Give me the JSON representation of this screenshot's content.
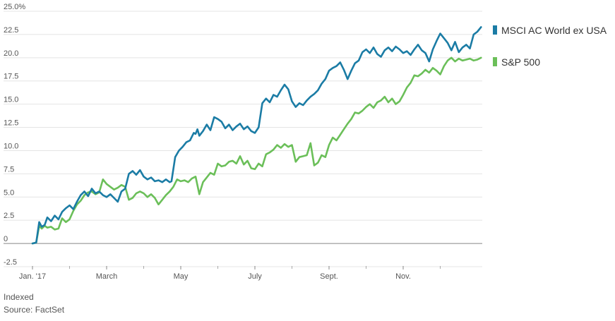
{
  "chart_data": {
    "type": "line",
    "title": "",
    "xlabel": "",
    "ylabel": "",
    "y_unit_suffix": "%",
    "ylim": [
      -2.5,
      25.0
    ],
    "y_ticks": [
      "25.0%",
      "22.5",
      "20.0",
      "17.5",
      "15.0",
      "12.5",
      "10.0",
      "7.5",
      "5.0",
      "2.5",
      "0",
      "-2.5"
    ],
    "y_tick_values": [
      25.0,
      22.5,
      20.0,
      17.5,
      15.0,
      12.5,
      10.0,
      7.5,
      5.0,
      2.5,
      0,
      -2.5
    ],
    "x_ticks": [
      {
        "label": "Jan. '17",
        "month": 0
      },
      {
        "label": "March",
        "month": 2
      },
      {
        "label": "May",
        "month": 4
      },
      {
        "label": "July",
        "month": 6
      },
      {
        "label": "Sept.",
        "month": 8
      },
      {
        "label": "Nov.",
        "month": 10
      }
    ],
    "x_minor_months": [
      1,
      3,
      5,
      7,
      9,
      11
    ],
    "grid": true,
    "legend_position": "right",
    "series": [
      {
        "name": "MSCI AC World ex USA",
        "color": "#1b7ca5",
        "points": [
          [
            0.0,
            0.0
          ],
          [
            0.1,
            0.1
          ],
          [
            0.18,
            2.3
          ],
          [
            0.25,
            1.8
          ],
          [
            0.33,
            2.0
          ],
          [
            0.4,
            2.8
          ],
          [
            0.5,
            2.4
          ],
          [
            0.6,
            3.0
          ],
          [
            0.7,
            2.6
          ],
          [
            0.8,
            3.4
          ],
          [
            0.9,
            3.8
          ],
          [
            1.0,
            4.1
          ],
          [
            1.1,
            3.7
          ],
          [
            1.2,
            4.5
          ],
          [
            1.3,
            5.2
          ],
          [
            1.4,
            5.6
          ],
          [
            1.5,
            5.1
          ],
          [
            1.6,
            5.9
          ],
          [
            1.7,
            5.4
          ],
          [
            1.8,
            5.6
          ],
          [
            1.9,
            5.2
          ],
          [
            2.0,
            5.0
          ],
          [
            2.1,
            5.3
          ],
          [
            2.2,
            4.9
          ],
          [
            2.3,
            4.5
          ],
          [
            2.4,
            5.6
          ],
          [
            2.5,
            5.9
          ],
          [
            2.6,
            7.5
          ],
          [
            2.7,
            7.8
          ],
          [
            2.8,
            7.4
          ],
          [
            2.9,
            7.9
          ],
          [
            3.0,
            7.2
          ],
          [
            3.1,
            6.9
          ],
          [
            3.2,
            7.1
          ],
          [
            3.3,
            6.7
          ],
          [
            3.4,
            6.8
          ],
          [
            3.5,
            6.6
          ],
          [
            3.6,
            6.9
          ],
          [
            3.7,
            6.6
          ],
          [
            3.75,
            6.7
          ],
          [
            3.85,
            9.3
          ],
          [
            3.95,
            10.0
          ],
          [
            4.05,
            10.4
          ],
          [
            4.15,
            10.9
          ],
          [
            4.25,
            11.1
          ],
          [
            4.35,
            11.9
          ],
          [
            4.4,
            11.8
          ],
          [
            4.45,
            12.3
          ],
          [
            4.5,
            11.6
          ],
          [
            4.6,
            12.1
          ],
          [
            4.7,
            12.8
          ],
          [
            4.8,
            12.2
          ],
          [
            4.9,
            13.6
          ],
          [
            5.0,
            13.4
          ],
          [
            5.1,
            13.1
          ],
          [
            5.2,
            12.4
          ],
          [
            5.3,
            12.8
          ],
          [
            5.4,
            12.2
          ],
          [
            5.5,
            12.6
          ],
          [
            5.6,
            12.9
          ],
          [
            5.7,
            12.3
          ],
          [
            5.8,
            12.6
          ],
          [
            5.9,
            12.1
          ],
          [
            6.0,
            11.9
          ],
          [
            6.1,
            12.5
          ],
          [
            6.2,
            15.1
          ],
          [
            6.3,
            15.6
          ],
          [
            6.4,
            15.2
          ],
          [
            6.5,
            16.0
          ],
          [
            6.6,
            15.8
          ],
          [
            6.7,
            16.5
          ],
          [
            6.8,
            17.1
          ],
          [
            6.9,
            16.6
          ],
          [
            7.0,
            15.3
          ],
          [
            7.1,
            14.7
          ],
          [
            7.2,
            15.1
          ],
          [
            7.3,
            14.9
          ],
          [
            7.4,
            15.4
          ],
          [
            7.5,
            15.8
          ],
          [
            7.6,
            16.1
          ],
          [
            7.7,
            16.5
          ],
          [
            7.8,
            17.2
          ],
          [
            7.9,
            17.7
          ],
          [
            8.0,
            18.6
          ],
          [
            8.1,
            18.9
          ],
          [
            8.2,
            19.1
          ],
          [
            8.3,
            19.5
          ],
          [
            8.4,
            18.7
          ],
          [
            8.5,
            17.7
          ],
          [
            8.6,
            18.6
          ],
          [
            8.7,
            19.4
          ],
          [
            8.8,
            19.7
          ],
          [
            8.9,
            20.6
          ],
          [
            9.0,
            20.9
          ],
          [
            9.1,
            20.5
          ],
          [
            9.2,
            21.1
          ],
          [
            9.3,
            20.4
          ],
          [
            9.4,
            20.1
          ],
          [
            9.5,
            20.8
          ],
          [
            9.6,
            21.1
          ],
          [
            9.7,
            20.7
          ],
          [
            9.8,
            21.2
          ],
          [
            9.9,
            20.9
          ],
          [
            10.0,
            20.5
          ],
          [
            10.1,
            20.7
          ],
          [
            10.2,
            20.3
          ],
          [
            10.3,
            20.9
          ],
          [
            10.4,
            21.4
          ],
          [
            10.5,
            20.8
          ],
          [
            10.6,
            20.5
          ],
          [
            10.7,
            19.6
          ],
          [
            10.8,
            20.9
          ],
          [
            10.9,
            21.8
          ],
          [
            11.0,
            22.6
          ],
          [
            11.1,
            22.1
          ],
          [
            11.2,
            21.6
          ],
          [
            11.3,
            20.8
          ],
          [
            11.4,
            21.7
          ],
          [
            11.5,
            20.6
          ],
          [
            11.6,
            21.1
          ],
          [
            11.7,
            21.4
          ],
          [
            11.8,
            21.0
          ],
          [
            11.9,
            22.5
          ],
          [
            12.0,
            22.8
          ],
          [
            12.1,
            23.3
          ]
        ]
      },
      {
        "name": "S&P 500",
        "color": "#6bbf59",
        "points": [
          [
            0.0,
            0.0
          ],
          [
            0.1,
            0.1
          ],
          [
            0.18,
            1.9
          ],
          [
            0.25,
            1.6
          ],
          [
            0.33,
            1.9
          ],
          [
            0.4,
            1.7
          ],
          [
            0.5,
            1.8
          ],
          [
            0.6,
            1.5
          ],
          [
            0.7,
            1.6
          ],
          [
            0.8,
            2.7
          ],
          [
            0.9,
            2.3
          ],
          [
            1.0,
            2.6
          ],
          [
            1.1,
            3.5
          ],
          [
            1.2,
            4.2
          ],
          [
            1.3,
            4.6
          ],
          [
            1.4,
            5.2
          ],
          [
            1.5,
            5.5
          ],
          [
            1.6,
            5.6
          ],
          [
            1.7,
            5.3
          ],
          [
            1.8,
            5.5
          ],
          [
            1.9,
            6.9
          ],
          [
            2.0,
            6.4
          ],
          [
            2.1,
            6.1
          ],
          [
            2.2,
            5.8
          ],
          [
            2.3,
            6.0
          ],
          [
            2.4,
            6.3
          ],
          [
            2.5,
            6.1
          ],
          [
            2.6,
            4.7
          ],
          [
            2.7,
            4.9
          ],
          [
            2.8,
            5.4
          ],
          [
            2.9,
            5.6
          ],
          [
            3.0,
            5.4
          ],
          [
            3.1,
            5.0
          ],
          [
            3.2,
            5.3
          ],
          [
            3.3,
            4.9
          ],
          [
            3.4,
            4.2
          ],
          [
            3.5,
            4.7
          ],
          [
            3.6,
            5.2
          ],
          [
            3.7,
            5.6
          ],
          [
            3.8,
            6.1
          ],
          [
            3.9,
            6.9
          ],
          [
            4.0,
            6.7
          ],
          [
            4.1,
            6.8
          ],
          [
            4.2,
            6.6
          ],
          [
            4.3,
            7.0
          ],
          [
            4.4,
            7.2
          ],
          [
            4.5,
            5.3
          ],
          [
            4.6,
            6.6
          ],
          [
            4.7,
            7.1
          ],
          [
            4.8,
            7.6
          ],
          [
            4.9,
            7.4
          ],
          [
            5.0,
            8.6
          ],
          [
            5.1,
            8.3
          ],
          [
            5.2,
            8.4
          ],
          [
            5.3,
            8.8
          ],
          [
            5.4,
            8.9
          ],
          [
            5.5,
            8.6
          ],
          [
            5.6,
            9.4
          ],
          [
            5.7,
            8.5
          ],
          [
            5.8,
            8.9
          ],
          [
            5.9,
            8.1
          ],
          [
            6.0,
            8.0
          ],
          [
            6.1,
            8.6
          ],
          [
            6.2,
            8.3
          ],
          [
            6.3,
            9.6
          ],
          [
            6.4,
            9.8
          ],
          [
            6.5,
            10.1
          ],
          [
            6.6,
            10.6
          ],
          [
            6.7,
            10.3
          ],
          [
            6.8,
            10.7
          ],
          [
            6.9,
            10.4
          ],
          [
            7.0,
            10.6
          ],
          [
            7.1,
            8.8
          ],
          [
            7.2,
            9.3
          ],
          [
            7.3,
            9.4
          ],
          [
            7.4,
            9.5
          ],
          [
            7.5,
            10.8
          ],
          [
            7.6,
            8.4
          ],
          [
            7.7,
            8.7
          ],
          [
            7.8,
            9.5
          ],
          [
            7.9,
            9.3
          ],
          [
            8.0,
            10.6
          ],
          [
            8.1,
            11.4
          ],
          [
            8.2,
            11.1
          ],
          [
            8.3,
            11.7
          ],
          [
            8.4,
            12.3
          ],
          [
            8.5,
            12.9
          ],
          [
            8.6,
            13.4
          ],
          [
            8.7,
            14.1
          ],
          [
            8.8,
            14.0
          ],
          [
            8.9,
            14.3
          ],
          [
            9.0,
            14.7
          ],
          [
            9.1,
            15.0
          ],
          [
            9.2,
            14.6
          ],
          [
            9.3,
            15.2
          ],
          [
            9.4,
            15.4
          ],
          [
            9.5,
            15.8
          ],
          [
            9.6,
            15.2
          ],
          [
            9.7,
            15.6
          ],
          [
            9.8,
            15.0
          ],
          [
            9.9,
            15.3
          ],
          [
            10.0,
            16.0
          ],
          [
            10.1,
            16.8
          ],
          [
            10.2,
            17.3
          ],
          [
            10.3,
            18.1
          ],
          [
            10.4,
            18.0
          ],
          [
            10.5,
            18.3
          ],
          [
            10.6,
            18.7
          ],
          [
            10.7,
            18.4
          ],
          [
            10.8,
            18.9
          ],
          [
            10.9,
            18.6
          ],
          [
            11.0,
            18.2
          ],
          [
            11.1,
            19.1
          ],
          [
            11.2,
            19.7
          ],
          [
            11.3,
            20.0
          ],
          [
            11.4,
            19.6
          ],
          [
            11.5,
            19.9
          ],
          [
            11.6,
            19.7
          ],
          [
            11.7,
            19.8
          ],
          [
            11.8,
            19.9
          ],
          [
            11.9,
            19.7
          ],
          [
            12.0,
            19.8
          ],
          [
            12.1,
            20.0
          ]
        ]
      }
    ]
  },
  "notes": {
    "indexed": "Indexed",
    "source": "Source: FactSet"
  }
}
